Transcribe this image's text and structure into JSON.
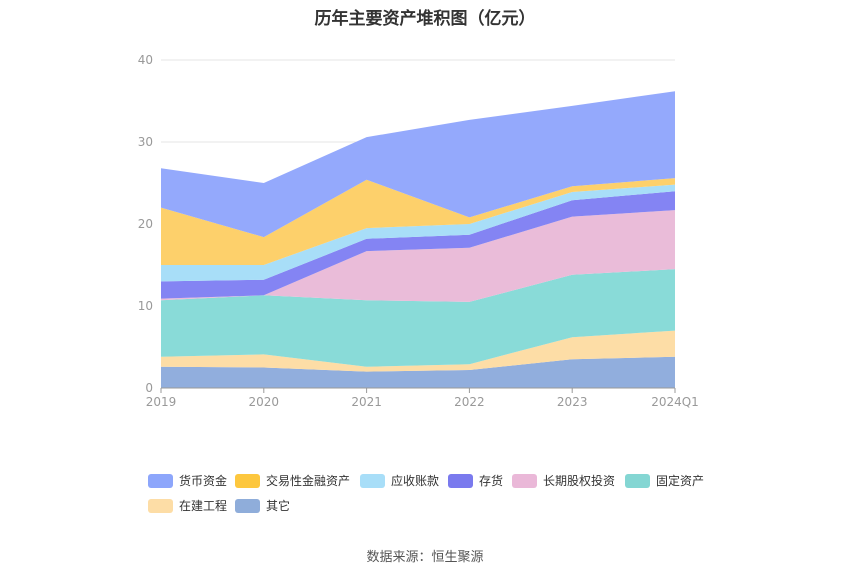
{
  "chart_data": {
    "type": "area",
    "stacked": true,
    "title": "历年主要资产堆积图（亿元）",
    "categories": [
      "2019",
      "2020",
      "2021",
      "2022",
      "2023",
      "2024Q1"
    ],
    "y_ticks": [
      "0",
      "10",
      "20",
      "30",
      "40"
    ],
    "ylim": [
      0,
      40
    ],
    "grid": true,
    "legend_position": "bottom",
    "series": [
      {
        "name": "其它",
        "color": "#91AEDD",
        "values": [
          2.6,
          2.5,
          2.0,
          2.2,
          3.5,
          3.8
        ]
      },
      {
        "name": "在建工程",
        "color": "#FDDDA6",
        "values": [
          1.2,
          1.6,
          0.6,
          0.7,
          2.7,
          3.2
        ]
      },
      {
        "name": "固定资产",
        "color": "#89DBD8",
        "values": [
          6.9,
          7.2,
          8.1,
          7.6,
          7.6,
          7.5
        ]
      },
      {
        "name": "长期股权投资",
        "color": "#EABCD9",
        "values": [
          0.2,
          0.0,
          6.0,
          6.6,
          7.1,
          7.2
        ]
      },
      {
        "name": "存货",
        "color": "#8484F3",
        "values": [
          2.1,
          1.9,
          1.5,
          1.6,
          2.0,
          2.3
        ]
      },
      {
        "name": "应收账款",
        "color": "#A8DEF8",
        "values": [
          2.0,
          1.8,
          1.3,
          1.3,
          1.0,
          0.8
        ]
      },
      {
        "name": "交易性金融资产",
        "color": "#FDD06B",
        "values": [
          7.0,
          3.4,
          5.9,
          0.8,
          0.7,
          0.8
        ]
      },
      {
        "name": "货币资金",
        "color": "#94A9FC",
        "values": [
          4.8,
          6.6,
          5.2,
          11.9,
          9.8,
          10.6
        ]
      }
    ]
  },
  "legend": [
    {
      "label": "货币资金",
      "color": "#8DA6FB"
    },
    {
      "label": "交易性金融资产",
      "color": "#FDC73E"
    },
    {
      "label": "应收账款",
      "color": "#A8DEF8"
    },
    {
      "label": "存货",
      "color": "#7A7AEE"
    },
    {
      "label": "长期股权投资",
      "color": "#EAB8D8"
    },
    {
      "label": "固定资产",
      "color": "#84D6D3"
    },
    {
      "label": "在建工程",
      "color": "#FDDDA6"
    },
    {
      "label": "其它",
      "color": "#8FADDA"
    }
  ],
  "source": "数据来源：恒生聚源"
}
